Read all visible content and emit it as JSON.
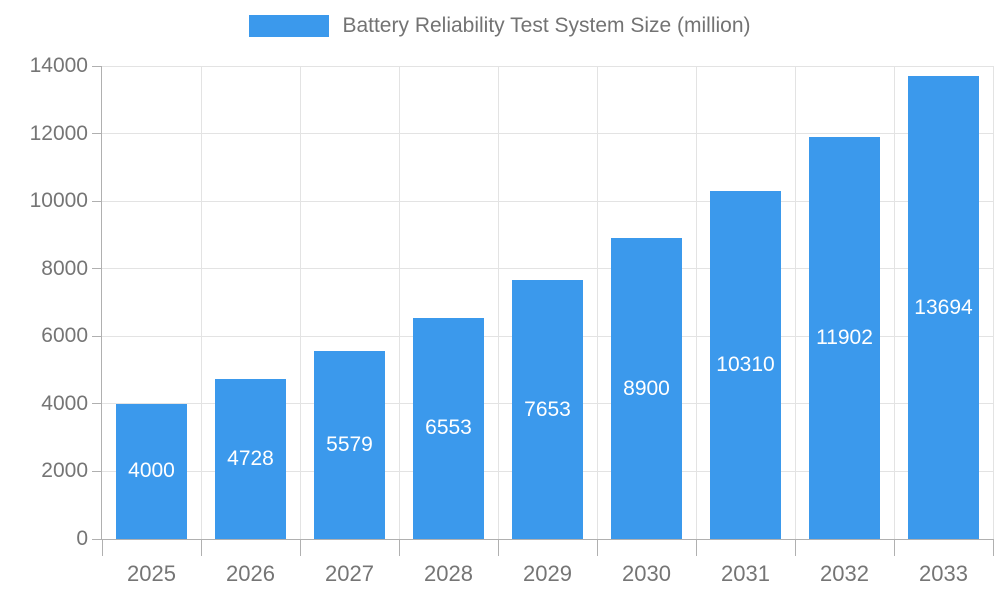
{
  "chart_data": {
    "type": "bar",
    "title": "Battery Reliability Test System Size (million)",
    "categories": [
      "2025",
      "2026",
      "2027",
      "2028",
      "2029",
      "2030",
      "2031",
      "2032",
      "2033"
    ],
    "values": [
      4000,
      4728,
      5579,
      6553,
      7653,
      8900,
      10310,
      11902,
      13694
    ],
    "series": [
      {
        "name": "Battery Reliability Test System Size (million)",
        "values": [
          4000,
          4728,
          5579,
          6553,
          7653,
          8900,
          10310,
          11902,
          13694
        ]
      }
    ],
    "xlabel": "",
    "ylabel": "",
    "ylim": [
      0,
      14000
    ],
    "yticks": [
      0,
      2000,
      4000,
      6000,
      8000,
      10000,
      12000,
      14000
    ],
    "grid": "horizontal and vertical gridlines on",
    "legend_position": "top-center",
    "value_labels": "white, centered inside bars",
    "colors": {
      "bar": "#3B99EC",
      "grid": "#E3E3E3",
      "axis_line": "#B0B0B0",
      "tick_label": "#757575",
      "legend_text": "#737373",
      "value_label": "#FFFFFF",
      "background": "#FFFFFF"
    }
  }
}
